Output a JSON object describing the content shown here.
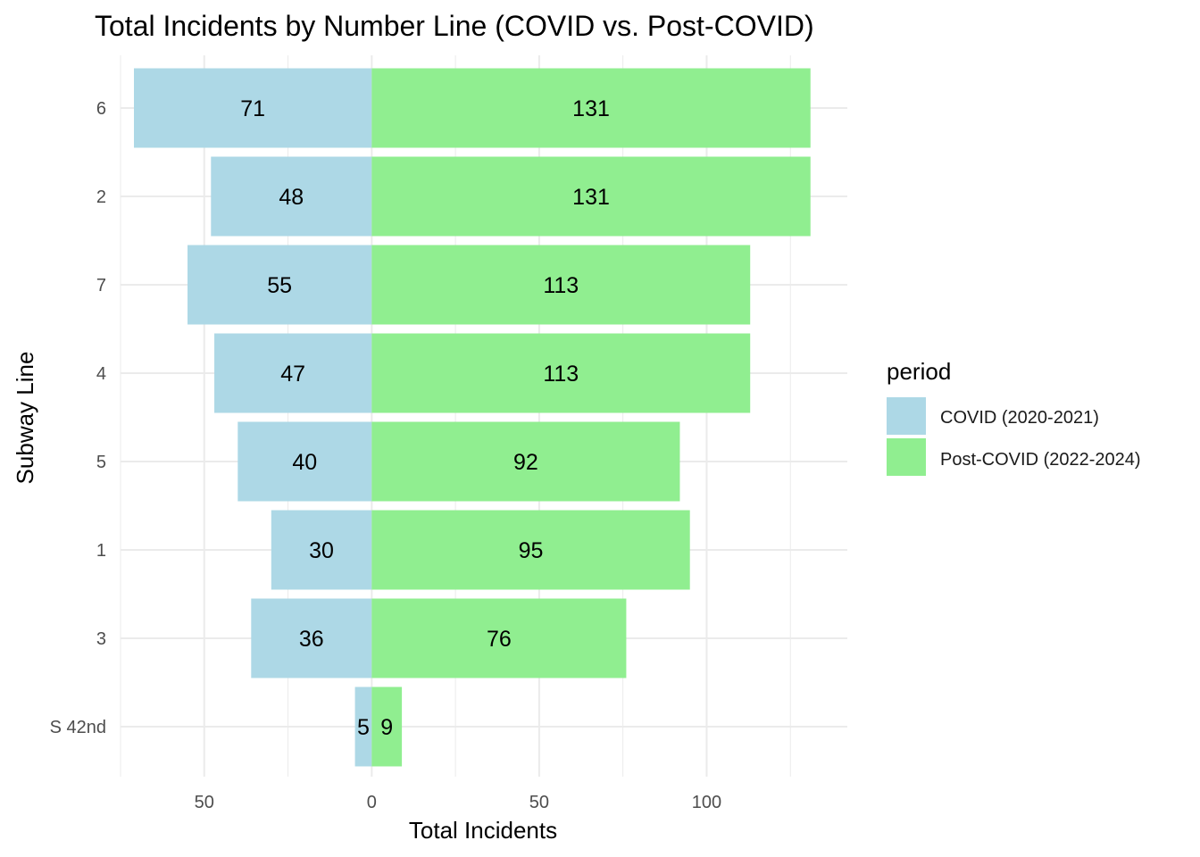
{
  "chart_data": {
    "type": "bar",
    "orientation": "horizontal-diverging",
    "title": "Total Incidents by Number Line (COVID vs. Post-COVID)",
    "xlabel": "Total Incidents",
    "ylabel": "Subway Line",
    "categories": [
      "6",
      "2",
      "7",
      "4",
      "5",
      "1",
      "3",
      "S 42nd"
    ],
    "series": [
      {
        "name": "COVID (2020-2021)",
        "color": "#add8e6",
        "direction": "negative",
        "values": [
          71,
          48,
          55,
          47,
          40,
          30,
          36,
          5
        ]
      },
      {
        "name": "Post-COVID (2022-2024)",
        "color": "#90ee90",
        "direction": "positive",
        "values": [
          131,
          131,
          113,
          113,
          92,
          95,
          76,
          9
        ]
      }
    ],
    "xlim": [
      -75,
      142
    ],
    "x_major_ticks": [
      -50,
      0,
      50,
      100
    ],
    "x_tick_labels": [
      "50",
      "0",
      "50",
      "100"
    ],
    "x_minor_ticks": [
      -75,
      -25,
      25,
      75,
      125
    ],
    "legend_title": "period",
    "legend_position": "right",
    "grid": true
  }
}
